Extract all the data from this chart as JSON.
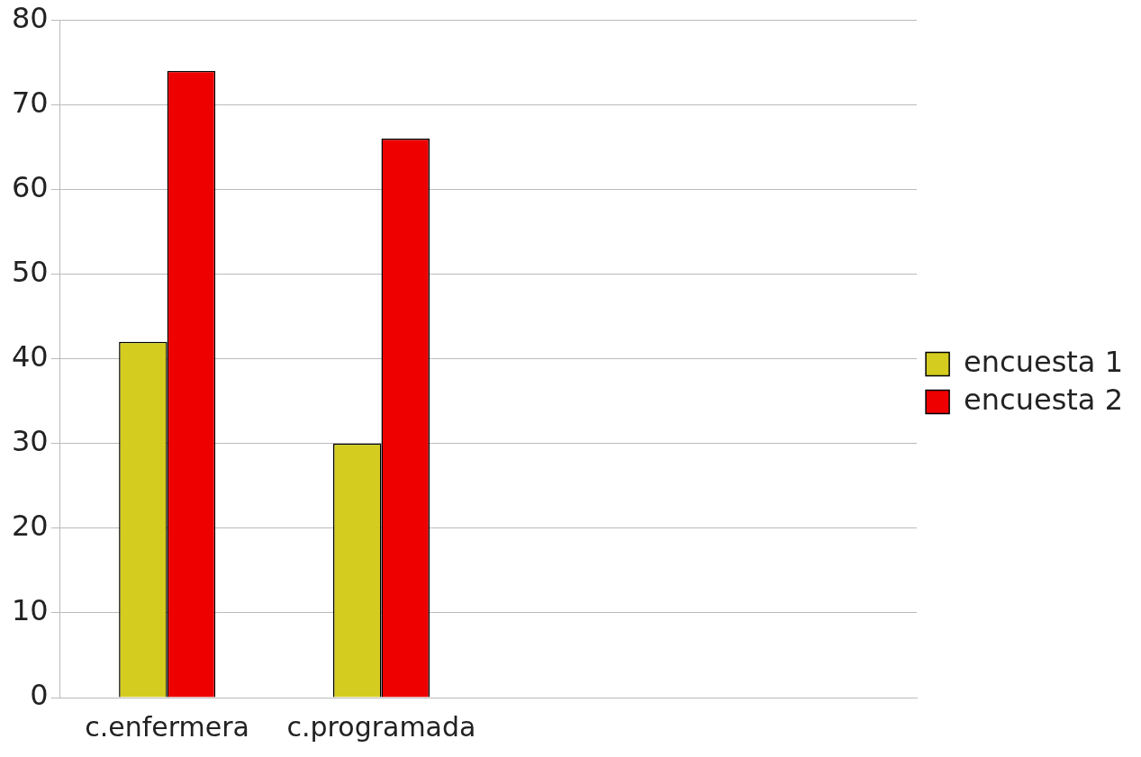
{
  "chart_data": {
    "type": "bar",
    "categories": [
      "c.enfermera",
      "c.programada",
      null,
      null
    ],
    "series": [
      {
        "name": "encuesta 1",
        "color": "#d4cc1e",
        "values": [
          42,
          30,
          null,
          null
        ]
      },
      {
        "name": "encuesta 2",
        "color": "#ee0000",
        "values": [
          74,
          66,
          null,
          null
        ]
      }
    ],
    "ylim": [
      0,
      80
    ],
    "yticks": [
      0,
      10,
      20,
      30,
      40,
      50,
      60,
      70,
      80
    ],
    "grid": "y",
    "legend": "right"
  }
}
